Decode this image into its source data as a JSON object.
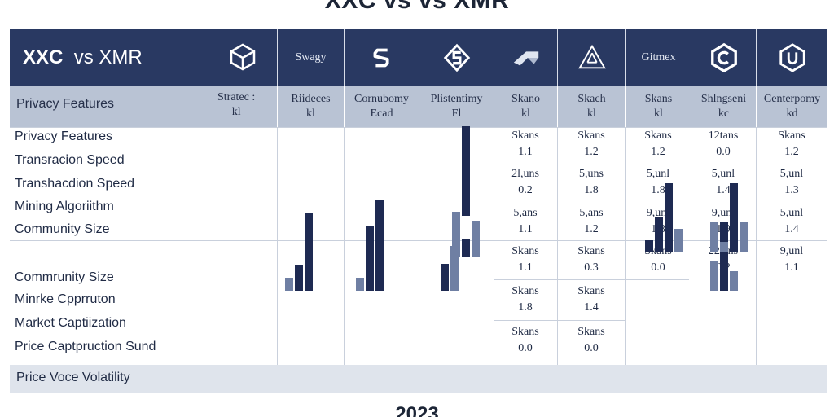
{
  "page_title": "XXC vs vs XMR",
  "footer_year": "2023",
  "header": {
    "title_left": "XXC",
    "title_vs": "vs",
    "title_right": "XMR",
    "main_icon": "cube-icon",
    "columns": [
      {
        "label": "Swagy",
        "icon": ""
      },
      {
        "label": "",
        "icon": "s-coin-icon"
      },
      {
        "label": "",
        "icon": "s-hexagon-icon"
      },
      {
        "label": "",
        "icon": "ramp-icon"
      },
      {
        "label": "",
        "icon": "triangle-arrows-icon"
      },
      {
        "label": "Gitmex",
        "icon": ""
      },
      {
        "label": "",
        "icon": "hexagon-c-icon"
      },
      {
        "label": "",
        "icon": "hexagon-u-icon"
      }
    ]
  },
  "subheader": {
    "first_label": "Privacy Features",
    "first_extra": [
      "Stratec :",
      "kl"
    ],
    "cells": [
      [
        "Riideces",
        "kl"
      ],
      [
        "Cornubomy",
        "Ecad"
      ],
      [
        "Plistentimy",
        "Fl"
      ],
      [
        "Skano",
        "kl"
      ],
      [
        "Skach",
        "kl"
      ],
      [
        "Skans",
        "kl"
      ],
      [
        "Shlngseni",
        "kc"
      ],
      [
        "Centerpomy",
        "kd"
      ]
    ]
  },
  "row_labels": [
    "Privacy Features",
    "Transracion Speed",
    "Transhacdion Speed",
    "Mining Algoriithm",
    "Community Size",
    "Commrunity Size",
    "Minrke Cpprruton",
    "Market Captiization",
    "Price Captpruction Sund"
  ],
  "footer_label": "Price Voce Volatility",
  "values": {
    "block1": [
      [
        "Skans",
        "1.1"
      ],
      [
        "Skans",
        "1.2"
      ],
      [
        "Skans",
        "1.2"
      ],
      [
        "12tans",
        "0.0"
      ],
      [
        "Skans",
        "1.2"
      ]
    ],
    "block2": [
      [
        "2l,uns",
        "0.2"
      ],
      [
        "5,uns",
        "1.8"
      ],
      [
        "5,unl",
        "1.8"
      ],
      [
        "5,unl",
        "1.4"
      ],
      [
        "5,unl",
        "1.3"
      ]
    ],
    "block3": [
      [
        "5,ans",
        "1.1"
      ],
      [
        "5,ans",
        "1.2"
      ],
      [
        "9,unl",
        "1.8"
      ],
      [
        "9,unl",
        "1.9"
      ],
      [
        "5,unl",
        "1.4"
      ]
    ],
    "block4": [
      [
        "Skans",
        "1.1"
      ],
      [
        "Skans",
        "0.3"
      ],
      [
        "Skans",
        "0.0"
      ],
      [
        "22,ans",
        "0.2"
      ],
      [
        "9,unl",
        "1.1"
      ]
    ],
    "block5": [
      [
        "Skans",
        "1.8"
      ],
      [
        "Skans",
        "1.4"
      ]
    ],
    "block6": [
      [
        "Skans",
        "0.0"
      ],
      [
        "Skans",
        "0.0"
      ]
    ]
  },
  "colors": {
    "header_bg": "#293962",
    "subheader_bg": "#b9c3d4",
    "bar_dark": "#1e2a52",
    "bar_light": "#6f7fa3"
  },
  "chart_data": {
    "type": "bar",
    "series": [
      {
        "values": [
          1,
          2,
          6
        ],
        "shades": [
          "light",
          "dark",
          "dark"
        ]
      },
      {
        "values": [
          1,
          5,
          7
        ],
        "shades": [
          "light",
          "dark",
          "dark"
        ]
      },
      {
        "values": [
          3,
          5,
          5,
          2,
          10,
          4
        ],
        "shades": [
          "dark",
          "light",
          "light",
          "dark",
          "dark",
          "light"
        ]
      },
      {
        "values": [
          1,
          3,
          6,
          2
        ],
        "shades": [
          "dark",
          "dark",
          "dark",
          "light"
        ]
      },
      {
        "values": [
          3,
          7,
          2,
          1,
          3,
          7,
          3
        ],
        "shades": [
          "light",
          "dark",
          "light",
          "light",
          "light",
          "dark",
          "light"
        ]
      }
    ]
  }
}
